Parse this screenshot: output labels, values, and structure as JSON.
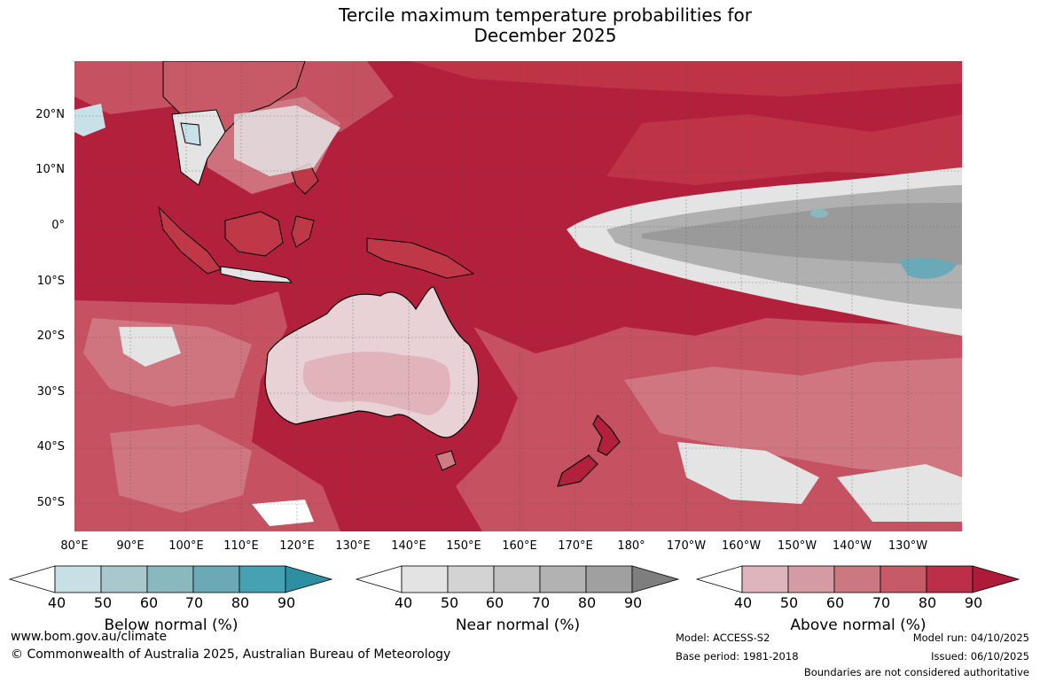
{
  "title": {
    "line1": "Tercile maximum temperature probabilities for",
    "line2": "December 2025"
  },
  "map": {
    "lat_labels": [
      "20°N",
      "10°N",
      "0°",
      "10°S",
      "20°S",
      "30°S",
      "40°S",
      "50°S"
    ],
    "lon_labels": [
      "80°E",
      "90°E",
      "100°E",
      "110°E",
      "120°E",
      "130°E",
      "140°E",
      "150°E",
      "160°E",
      "170°E",
      "180°",
      "170°W",
      "160°W",
      "150°W",
      "140°W",
      "130°W"
    ],
    "colors": {
      "above_90": "#b3203c",
      "above_80": "#c03848",
      "above_70": "#c85a67",
      "above_60": "#d07a84",
      "above_50": "#dc9ea6",
      "below_normal_tint": "#c8e0e8",
      "below_70": "#6aaab8",
      "near_normal": "#e4e4e4",
      "near_70": "#b0b0b0",
      "near_90": "#8a8a8a"
    }
  },
  "colorbars": [
    {
      "label": "Below normal (%)",
      "ticks": [
        "40",
        "50",
        "60",
        "70",
        "80",
        "90"
      ],
      "colors": [
        "#ffffff",
        "#c8dfe5",
        "#a8c8ce",
        "#8ab8bf",
        "#6aa9b5",
        "#46a1b3",
        "#2e8fa2"
      ]
    },
    {
      "label": "Near normal (%)",
      "ticks": [
        "40",
        "50",
        "60",
        "70",
        "80",
        "90"
      ],
      "colors": [
        "#ffffff",
        "#e3e3e3",
        "#d3d3d3",
        "#c2c2c2",
        "#b2b2b2",
        "#a0a0a0",
        "#7e7e7e"
      ]
    },
    {
      "label": "Above normal (%)",
      "ticks": [
        "40",
        "50",
        "60",
        "70",
        "80",
        "90"
      ],
      "colors": [
        "#ffffff",
        "#dfb5bd",
        "#d59ba4",
        "#cc7880",
        "#c65a66",
        "#bd2e48",
        "#ae1a38"
      ]
    }
  ],
  "footer": {
    "website": "www.bom.gov.au/climate",
    "copyright": "© Commonwealth of Australia 2025, Australian Bureau of Meteorology",
    "model": "Model: ACCESS-S2",
    "base_period": "Base period: 1981-2018",
    "model_run": "Model run: 04/10/2025",
    "issued": "Issued: 06/10/2025",
    "disclaimer": "Boundaries are not considered authoritative"
  }
}
